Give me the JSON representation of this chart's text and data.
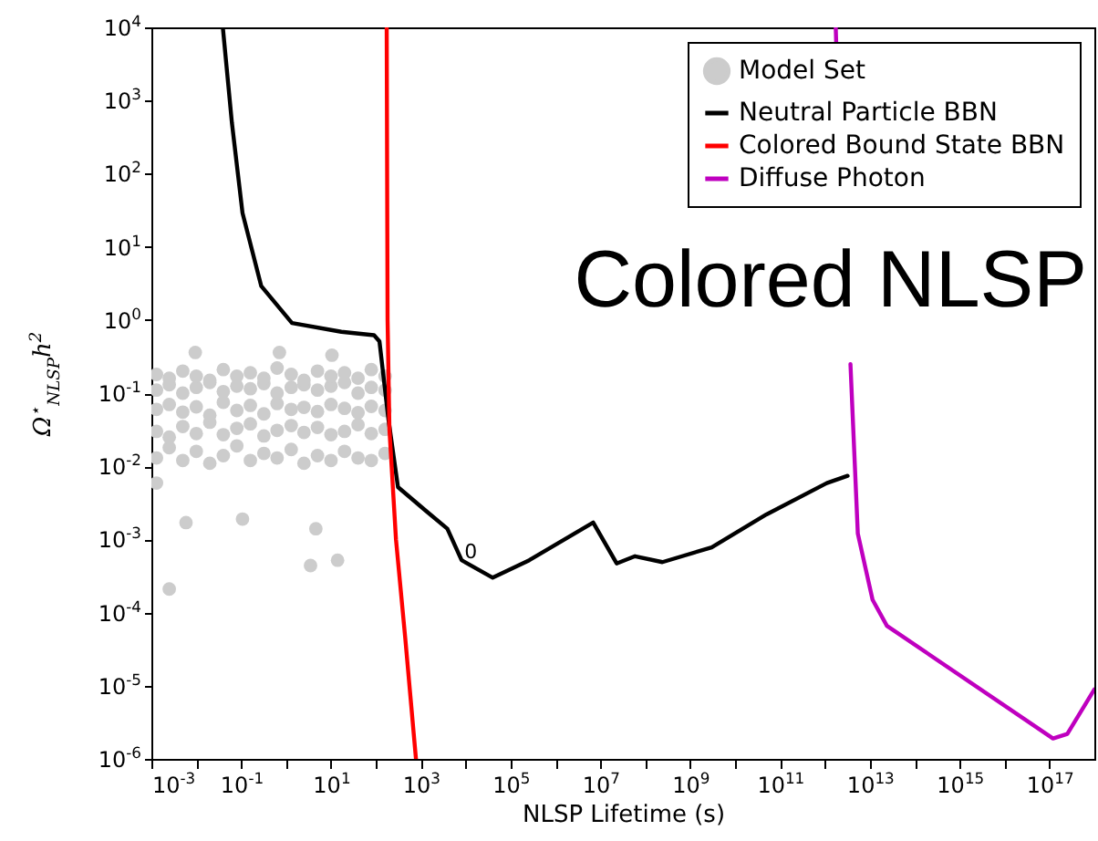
{
  "chart_data": {
    "type": "line",
    "xlabel": "NLSP Lifetime (s)",
    "ylabel": "Ω$^{⋆}$$_{NLSP}$h$^{2}$",
    "log": "xy",
    "legend": "top right",
    "xlim": [
      0.001,
      1e+18
    ],
    "ylim": [
      1e-06,
      10000
    ],
    "xticks": [
      {
        "value": 0.001,
        "label": "10$^{-3}$"
      },
      {
        "value": 0.01,
        "label": null
      },
      {
        "value": 0.1,
        "label": "10$^{-1}$"
      },
      {
        "value": 1,
        "label": null
      },
      {
        "value": 10,
        "label": "10$^{1}$"
      },
      {
        "value": 100,
        "label": null
      },
      {
        "value": 1000,
        "label": "10$^{3}$"
      },
      {
        "value": 10000,
        "label": null
      },
      {
        "value": 100000,
        "label": "10$^{5}$"
      },
      {
        "value": 1000000,
        "label": null
      },
      {
        "value": 10000000,
        "label": "10$^{7}$"
      },
      {
        "value": 100000000,
        "label": null
      },
      {
        "value": 1000000000,
        "label": "10$^{9}$"
      },
      {
        "value": 10000000000,
        "label": null
      },
      {
        "value": 100000000000,
        "label": "10$^{11}$"
      },
      {
        "value": 1000000000000,
        "label": null
      },
      {
        "value": 10000000000000,
        "label": "10$^{13}$"
      },
      {
        "value": 100000000000000,
        "label": null
      },
      {
        "value": 1000000000000000,
        "label": "10$^{15}$"
      },
      {
        "value": 10000000000000000,
        "label": null
      },
      {
        "value": 100000000000000000,
        "label": "10$^{17}$"
      }
    ],
    "yticks": [
      {
        "value": 1e-06,
        "label": "10$^{-6}$"
      },
      {
        "value": 1e-05,
        "label": "10$^{-5}$"
      },
      {
        "value": 0.0001,
        "label": "10$^{-4}$"
      },
      {
        "value": 0.001,
        "label": "10$^{-3}$"
      },
      {
        "value": 0.01,
        "label": "10$^{-2}$"
      },
      {
        "value": 0.1,
        "label": "10$^{-1}$"
      },
      {
        "value": 1,
        "label": "10$^{0}$"
      },
      {
        "value": 10,
        "label": "10$^{1}$"
      },
      {
        "value": 100,
        "label": "10$^{2}$"
      },
      {
        "value": 1000,
        "label": "10$^{3}$"
      },
      {
        "value": 10000,
        "label": "10$^{4}$"
      }
    ],
    "annotations": [
      "Colored NLSP",
      {
        "text": "0",
        "x": 13000,
        "y": 0.00066
      }
    ],
    "series": [
      {
        "name": "Model Set",
        "type": "scatter",
        "marker": "circle",
        "color": "#cccccc",
        "x": [
          0.0013,
          0.0025,
          0.005,
          0.01,
          0.02,
          0.04,
          0.08,
          0.16,
          0.32,
          0.63,
          1.3,
          2.5,
          5,
          10,
          20,
          40,
          79,
          160,
          0.0013,
          0.0025,
          0.005,
          0.01,
          0.02,
          0.04,
          0.08,
          0.16,
          0.32,
          0.63,
          1.3,
          2.5,
          5,
          10,
          20,
          40,
          79,
          160,
          0.0013,
          0.0025,
          0.005,
          0.01,
          0.02,
          0.04,
          0.08,
          0.16,
          0.32,
          0.63,
          1.3,
          2.5,
          5,
          10,
          20,
          40,
          79,
          160,
          0.0013,
          0.0025,
          0.005,
          0.01,
          0.02,
          0.04,
          0.08,
          0.16,
          0.32,
          0.63,
          1.3,
          2.5,
          5,
          10,
          20,
          40,
          79,
          160,
          0.0013,
          0.0025,
          0.005,
          0.01,
          0.02,
          0.04,
          0.08,
          0.16,
          0.32,
          0.63,
          1.3,
          2.5,
          5,
          10,
          20,
          40,
          79,
          160,
          0.0013,
          0.0025,
          3.5,
          14,
          0.107,
          4.6,
          0.0059,
          0.0095,
          0.71,
          10.5
        ],
        "values": [
          0.013,
          0.018,
          0.012,
          0.016,
          0.011,
          0.014,
          0.019,
          0.012,
          0.015,
          0.013,
          0.017,
          0.011,
          0.014,
          0.012,
          0.016,
          0.013,
          0.012,
          0.015,
          0.03,
          0.025,
          0.035,
          0.028,
          0.04,
          0.027,
          0.033,
          0.038,
          0.026,
          0.031,
          0.036,
          0.029,
          0.034,
          0.027,
          0.03,
          0.037,
          0.028,
          0.032,
          0.06,
          0.07,
          0.055,
          0.065,
          0.05,
          0.075,
          0.058,
          0.068,
          0.052,
          0.072,
          0.06,
          0.064,
          0.056,
          0.07,
          0.062,
          0.054,
          0.066,
          0.058,
          0.11,
          0.13,
          0.1,
          0.12,
          0.14,
          0.105,
          0.125,
          0.115,
          0.135,
          0.1,
          0.12,
          0.13,
          0.11,
          0.125,
          0.14,
          0.1,
          0.12,
          0.11,
          0.18,
          0.16,
          0.2,
          0.17,
          0.15,
          0.21,
          0.17,
          0.19,
          0.16,
          0.22,
          0.18,
          0.15,
          0.2,
          0.17,
          0.19,
          0.16,
          0.21,
          0.17,
          0.0059,
          0.00021,
          0.00044,
          0.00052,
          0.0019,
          0.0014,
          0.0017,
          0.36,
          0.36,
          0.33
        ]
      },
      {
        "name": "Neutral Particle BBN",
        "type": "line",
        "color": "#000000",
        "x": [
          0.039,
          0.062,
          0.107,
          0.28,
          1.35,
          17,
          91,
          120,
          190,
          310,
          1260,
          3900,
          8100,
          40000,
          260000,
          6900000,
          23000000,
          59000000,
          240000000,
          3000000000,
          50000000000,
          1100000000000,
          3200000000000
        ],
        "values": [
          10000,
          500,
          29,
          2.9,
          0.91,
          0.69,
          0.62,
          0.51,
          0.044,
          0.0052,
          0.0025,
          0.0014,
          0.00052,
          0.0003,
          0.00052,
          0.0017,
          0.00047,
          0.00059,
          0.00049,
          0.00078,
          0.0022,
          0.0059,
          0.0074
        ]
      },
      {
        "name": "Colored Bound State BBN",
        "type": "line",
        "color": "#ff0000",
        "x": [
          174,
          182,
          200,
          280,
          450,
          780
        ],
        "values": [
          10000,
          1,
          0.032,
          0.001,
          4.5e-05,
          1e-06
        ]
      },
      {
        "name": "Diffuse Photon",
        "type": "line",
        "color": "#bf00bf",
        "x": [
          1740000000000,
          1780000000000,
          2500000000000,
          3700000000000,
          5400000000000,
          11500000000000,
          24000000000000,
          120000000000000000,
          250000000000000000,
          1000000000000000000
        ],
        "values": [
          10000,
          6300,
          null,
          0.25,
          0.0012,
          0.00015,
          6.6e-05,
          1.9e-06,
          2.2e-06,
          8.9e-06
        ]
      }
    ]
  }
}
